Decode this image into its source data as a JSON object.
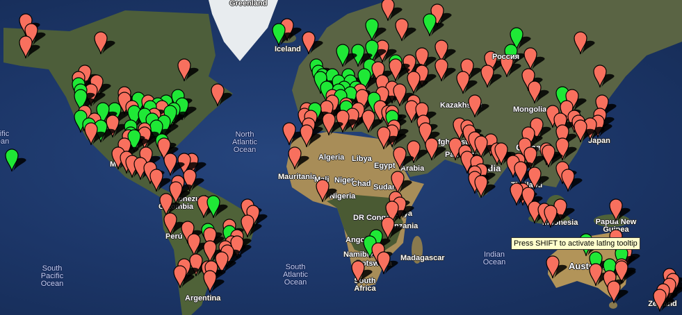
{
  "map": {
    "labels": {
      "greenland": "Greenland",
      "iceland": "Iceland",
      "russia": "Россия",
      "mongolia": "Mongolia",
      "kazakhstan": "Kazakhstan",
      "china": "China",
      "japan": "Japan",
      "afghanistan": "Afghanistan",
      "pakistan": "Pakistan",
      "india": "India",
      "thailand": "Thailand",
      "indonesia": "Indonesia",
      "papua": "Papua New Guinea",
      "australia": "Australia",
      "new_zealand": "New Zealand",
      "algeria": "Algeria",
      "libya": "Libya",
      "egypt": "Egypt",
      "arabia": "Arabia",
      "mauritania": "Mauritania",
      "mali": "Mali",
      "niger": "Niger",
      "chad": "Chad",
      "sudan": "Sudan",
      "nigeria": "Nigeria",
      "dr_congo": "DR Congo",
      "kenya": "Kenya",
      "tanzania": "Tanzania",
      "angola": "Angola",
      "namibia": "Namibia",
      "botswana": "Botswana",
      "south_africa": "South Africa",
      "madagascar": "Madagascar",
      "venezuela": "Venezuela",
      "colombia": "Colombia",
      "peru": "Perú",
      "argentina": "Argentina",
      "mexico": "Mexico",
      "north_atlantic": "North Atlantic Ocean",
      "south_atlantic": "South Atlantic Ocean",
      "south_pacific": "South Pacific Ocean",
      "pacific": "Pacific Ocean",
      "indian": "Indian Ocean"
    },
    "tooltip": "Press SHIFT to activate latlng tooltip",
    "colors": {
      "red_marker": "#f8705e",
      "green_marker": "#1fe836",
      "ocean": "#1c3668"
    },
    "markers": [
      [
        61,
        -150,
        "red"
      ],
      [
        64,
        -147,
        "red"
      ],
      [
        66,
        -150,
        "red"
      ],
      [
        62,
        -112,
        "red"
      ],
      [
        55,
        -70,
        "red"
      ],
      [
        47,
        -53,
        "red"
      ],
      [
        53,
        -120,
        "red"
      ],
      [
        50,
        -114,
        "red"
      ],
      [
        51,
        -123,
        "red"
      ],
      [
        47,
        -117,
        "red"
      ],
      [
        39,
        -120,
        "red"
      ],
      [
        36,
        -115,
        "red"
      ],
      [
        32,
        -117,
        "red"
      ],
      [
        35,
        -106,
        "red"
      ],
      [
        30,
        -90,
        "red"
      ],
      [
        29,
        -98,
        "red"
      ],
      [
        41,
        -96,
        "red"
      ],
      [
        44,
        -100,
        "red"
      ],
      [
        46,
        -100,
        "red"
      ],
      [
        43,
        -88,
        "red"
      ],
      [
        38,
        -85,
        "red"
      ],
      [
        32,
        -90,
        "red"
      ],
      [
        25,
        -80,
        "red"
      ],
      [
        41,
        -81,
        "red"
      ],
      [
        47,
        -122,
        "green"
      ],
      [
        45,
        -122,
        "green"
      ],
      [
        49,
        -123,
        "green"
      ],
      [
        37,
        -122,
        "green"
      ],
      [
        34,
        -118,
        "green"
      ],
      [
        40,
        -105,
        "green"
      ],
      [
        41,
        -87,
        "green"
      ],
      [
        42,
        -83,
        "green"
      ],
      [
        40,
        -75,
        "green"
      ],
      [
        42,
        -71,
        "green"
      ],
      [
        39,
        -77,
        "green"
      ],
      [
        35,
        -80,
        "green"
      ],
      [
        33,
        -84,
        "green"
      ],
      [
        30,
        -97,
        "green"
      ],
      [
        33,
        -97,
        "green"
      ],
      [
        39,
        -95,
        "green"
      ],
      [
        44,
        -93,
        "green"
      ],
      [
        36,
        -86,
        "green"
      ],
      [
        27,
        -81,
        "green"
      ],
      [
        43,
        -79,
        "green"
      ],
      [
        45,
        -73,
        "green"
      ],
      [
        38,
        -90,
        "green"
      ],
      [
        40,
        -111,
        "green"
      ],
      [
        33,
        -112,
        "green"
      ],
      [
        29,
        -95,
        "green"
      ],
      [
        20,
        -157,
        "green"
      ],
      [
        25,
        -100,
        "red"
      ],
      [
        21,
        -103,
        "red"
      ],
      [
        19,
        -99,
        "red"
      ],
      [
        17,
        -96,
        "red"
      ],
      [
        21,
        -89,
        "red"
      ],
      [
        16,
        -92,
        "red"
      ],
      [
        14,
        -87,
        "red"
      ],
      [
        10,
        -84,
        "red"
      ],
      [
        18,
        -66,
        "red"
      ],
      [
        18,
        -70,
        "red"
      ],
      [
        18,
        -77,
        "red"
      ],
      [
        10,
        -67,
        "red"
      ],
      [
        4,
        -74,
        "red"
      ],
      [
        7,
        -73,
        "red"
      ],
      [
        -12,
        -77,
        "red"
      ],
      [
        -2,
        -79,
        "red"
      ],
      [
        -16,
        -68,
        "red"
      ],
      [
        -5,
        -38,
        "red"
      ],
      [
        -8,
        -35,
        "red"
      ],
      [
        -13,
        -38,
        "red"
      ],
      [
        -20,
        -43,
        "red"
      ],
      [
        -23,
        -46,
        "red"
      ],
      [
        -23,
        -43,
        "red"
      ],
      [
        -25,
        -49,
        "red"
      ],
      [
        -30,
        -51,
        "red"
      ],
      [
        -27,
        -48,
        "red"
      ],
      [
        -15,
        -47,
        "red"
      ],
      [
        -3,
        -60,
        "red"
      ],
      [
        -19,
        -57,
        "red"
      ],
      [
        -25,
        -57,
        "red"
      ],
      [
        -31,
        -64,
        "red"
      ],
      [
        -34,
        -58,
        "red"
      ],
      [
        -33,
        -70,
        "red"
      ],
      [
        -38,
        -57,
        "red"
      ],
      [
        -36,
        -72,
        "red"
      ],
      [
        -34,
        -56,
        "red"
      ],
      [
        -22,
        -65,
        "red"
      ],
      [
        -3,
        -55,
        "green"
      ],
      [
        -17,
        -58,
        "green"
      ],
      [
        -18,
        -47,
        "green"
      ],
      [
        65,
        -18,
        "red"
      ],
      [
        64,
        -22,
        "green"
      ],
      [
        62,
        -7,
        "red"
      ],
      [
        38,
        -9,
        "red"
      ],
      [
        40,
        -8,
        "red"
      ],
      [
        37,
        -6,
        "red"
      ],
      [
        41,
        2,
        "red"
      ],
      [
        43,
        5,
        "red"
      ],
      [
        45,
        5,
        "red"
      ],
      [
        42,
        12,
        "red"
      ],
      [
        38,
        15,
        "red"
      ],
      [
        40,
        18,
        "red"
      ],
      [
        37,
        23,
        "red"
      ],
      [
        41,
        29,
        "red"
      ],
      [
        39,
        33,
        "red"
      ],
      [
        45,
        20,
        "red"
      ],
      [
        47,
        19,
        "red"
      ],
      [
        50,
        30,
        "red"
      ],
      [
        55,
        37,
        "red"
      ],
      [
        60,
        30,
        "red"
      ],
      [
        54,
        28,
        "red"
      ],
      [
        58,
        50,
        "red"
      ],
      [
        56,
        44,
        "red"
      ],
      [
        53,
        50,
        "red"
      ],
      [
        51,
        46,
        "red"
      ],
      [
        48,
        35,
        "red"
      ],
      [
        47,
        39,
        "red"
      ],
      [
        46,
        30,
        "red"
      ],
      [
        69,
        33,
        "red"
      ],
      [
        65,
        40,
        "red"
      ],
      [
        60,
        60,
        "red"
      ],
      [
        55,
        60,
        "red"
      ],
      [
        55,
        73,
        "red"
      ],
      [
        57,
        85,
        "red"
      ],
      [
        53,
        83,
        "red"
      ],
      [
        52,
        104,
        "red"
      ],
      [
        56,
        93,
        "red"
      ],
      [
        43,
        46,
        "red"
      ],
      [
        41,
        45,
        "red"
      ],
      [
        40,
        50,
        "red"
      ],
      [
        62,
        130,
        "red"
      ],
      [
        53,
        140,
        "red"
      ],
      [
        58,
        105,
        "red"
      ],
      [
        68,
        58,
        "red"
      ],
      [
        52,
        0,
        "green"
      ],
      [
        51,
        -1,
        "green"
      ],
      [
        53,
        -2,
        "green"
      ],
      [
        55,
        -3,
        "green"
      ],
      [
        48,
        2,
        "green"
      ],
      [
        52,
        5,
        "green"
      ],
      [
        50,
        8,
        "green"
      ],
      [
        52,
        13,
        "green"
      ],
      [
        48,
        11,
        "green"
      ],
      [
        47,
        8,
        "green"
      ],
      [
        50,
        14,
        "green"
      ],
      [
        52,
        21,
        "green"
      ],
      [
        59,
        18,
        "green"
      ],
      [
        60,
        25,
        "green"
      ],
      [
        56,
        37,
        "green"
      ],
      [
        55,
        24,
        "green"
      ],
      [
        45,
        9,
        "green"
      ],
      [
        41,
        12,
        "green"
      ],
      [
        46,
        14,
        "green"
      ],
      [
        48,
        17,
        "green"
      ],
      [
        44,
        26,
        "green"
      ],
      [
        40,
        -4,
        "green"
      ],
      [
        59,
        10,
        "green"
      ],
      [
        65,
        25,
        "green"
      ],
      [
        66,
        54,
        "green"
      ],
      [
        63,
        98,
        "green"
      ],
      [
        59,
        95,
        "green"
      ],
      [
        46,
        121,
        "green"
      ],
      [
        37,
        35,
        "green"
      ],
      [
        28,
        77,
        "red"
      ],
      [
        19,
        73,
        "red"
      ],
      [
        13,
        80,
        "red"
      ],
      [
        23,
        88,
        "red"
      ],
      [
        17,
        78,
        "red"
      ],
      [
        26,
        80,
        "red"
      ],
      [
        22,
        72,
        "red"
      ],
      [
        12,
        77,
        "red"
      ],
      [
        9,
        77,
        "red"
      ],
      [
        31,
        74,
        "red"
      ],
      [
        25,
        67,
        "red"
      ],
      [
        33,
        73,
        "red"
      ],
      [
        34,
        69,
        "red"
      ],
      [
        35,
        51,
        "red"
      ],
      [
        32,
        52,
        "red"
      ],
      [
        24,
        46,
        "red"
      ],
      [
        21,
        39,
        "red"
      ],
      [
        25,
        55,
        "red"
      ],
      [
        31,
        35,
        "red"
      ],
      [
        30,
        31,
        "red"
      ],
      [
        33,
        36,
        "red"
      ],
      [
        39,
        35,
        "red"
      ],
      [
        39,
        116,
        "red"
      ],
      [
        31,
        121,
        "red"
      ],
      [
        23,
        113,
        "red"
      ],
      [
        30,
        104,
        "red"
      ],
      [
        34,
        108,
        "red"
      ],
      [
        22,
        114,
        "red"
      ],
      [
        36,
        120,
        "red"
      ],
      [
        25,
        102,
        "red"
      ],
      [
        45,
        126,
        "red"
      ],
      [
        41,
        123,
        "red"
      ],
      [
        37,
        127,
        "red"
      ],
      [
        35,
        129,
        "red"
      ],
      [
        35,
        139,
        "red"
      ],
      [
        34,
        135,
        "red"
      ],
      [
        43,
        141,
        "red"
      ],
      [
        33,
        130,
        "red"
      ],
      [
        38,
        140,
        "red"
      ],
      [
        25,
        121,
        "red"
      ],
      [
        14,
        121,
        "red"
      ],
      [
        10,
        124,
        "red"
      ],
      [
        21,
        105,
        "red"
      ],
      [
        11,
        107,
        "red"
      ],
      [
        14,
        100,
        "red"
      ],
      [
        18,
        99,
        "red"
      ],
      [
        3,
        101,
        "red"
      ],
      [
        1,
        104,
        "red"
      ],
      [
        -6,
        107,
        "red"
      ],
      [
        -7,
        112,
        "red"
      ],
      [
        -8,
        115,
        "red"
      ],
      [
        -5,
        120,
        "red"
      ],
      [
        3,
        98,
        "red"
      ],
      [
        48,
        107,
        "red"
      ],
      [
        43,
        77,
        "red"
      ],
      [
        51,
        71,
        "red"
      ],
      [
        7,
        80,
        "red"
      ],
      [
        27,
        85,
        "red"
      ],
      [
        23,
        90,
        "red"
      ],
      [
        17,
        96,
        "red"
      ],
      [
        36,
        3,
        "red"
      ],
      [
        37,
        10,
        "red"
      ],
      [
        34,
        -7,
        "red"
      ],
      [
        31,
        -8,
        "red"
      ],
      [
        32,
        -17,
        "red"
      ],
      [
        21,
        -14,
        "red"
      ],
      [
        5,
        0,
        "red"
      ],
      [
        -1,
        37,
        "red"
      ],
      [
        -4,
        39,
        "red"
      ],
      [
        -6,
        35,
        "red"
      ],
      [
        9,
        38,
        "red"
      ],
      [
        -26,
        28,
        "red"
      ],
      [
        -34,
        18,
        "red"
      ],
      [
        -30,
        31,
        "red"
      ],
      [
        -14,
        33,
        "red"
      ],
      [
        -20,
        27,
        "green"
      ],
      [
        -23,
        24,
        "green"
      ],
      [
        -32,
        116,
        "red"
      ],
      [
        -33,
        151,
        "red"
      ],
      [
        -34,
        151,
        "red"
      ],
      [
        -38,
        145,
        "red"
      ],
      [
        -42,
        147,
        "red"
      ],
      [
        -27,
        153,
        "red"
      ],
      [
        -20,
        148,
        "red"
      ],
      [
        -35,
        138,
        "red"
      ],
      [
        -5,
        148,
        "red"
      ],
      [
        -22,
        133,
        "green"
      ],
      [
        -30,
        138,
        "green"
      ],
      [
        -33,
        145,
        "green"
      ],
      [
        -28,
        151,
        "green"
      ],
      [
        -37,
        175,
        "red"
      ],
      [
        -41,
        175,
        "red"
      ],
      [
        -43,
        172,
        "red"
      ],
      [
        -45,
        170,
        "red"
      ],
      [
        -39,
        177,
        "red"
      ]
    ]
  }
}
